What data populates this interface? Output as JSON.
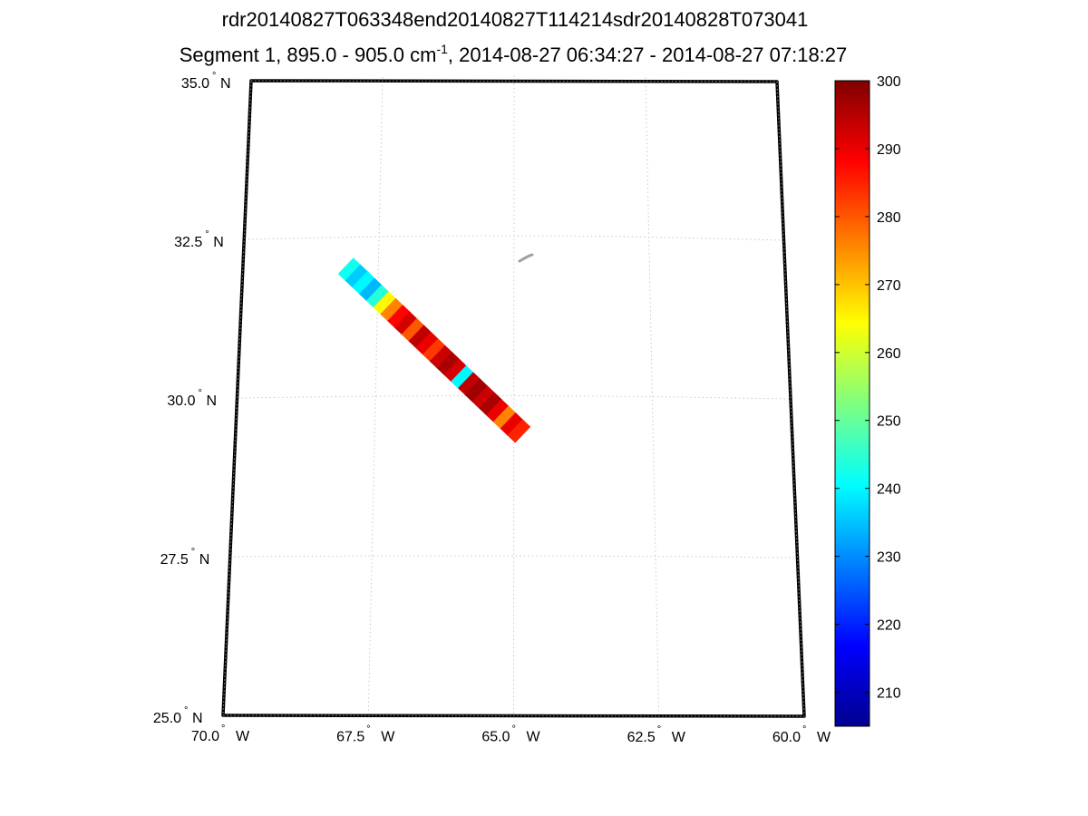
{
  "figure": {
    "title_line1": "rdr20140827T063348end20140827T114214sdr20140828T073041",
    "title_line2_prefix": "Segment 1, 895.0 - 905.0 cm",
    "title_line2_sup": "-1",
    "title_line2_suffix": ", 2014-08-27 06:34:27 - 2014-08-27 07:18:27"
  },
  "map": {
    "lon_range": [
      -70.0,
      -60.0
    ],
    "lat_range": [
      25.0,
      35.0
    ],
    "grid": true,
    "lat_ticks": [
      {
        "value": 35.0,
        "num": "35.0",
        "hem": "N"
      },
      {
        "value": 32.5,
        "num": "32.5",
        "hem": "N"
      },
      {
        "value": 30.0,
        "num": "30.0",
        "hem": "N"
      },
      {
        "value": 27.5,
        "num": "27.5",
        "hem": "N"
      },
      {
        "value": 25.0,
        "num": "25.0",
        "hem": "N"
      }
    ],
    "lon_ticks": [
      {
        "value": -70.0,
        "num": "70.0",
        "hem": "W"
      },
      {
        "value": -67.5,
        "num": "67.5",
        "hem": "W"
      },
      {
        "value": -65.0,
        "num": "65.0",
        "hem": "W"
      },
      {
        "value": -62.5,
        "num": "62.5",
        "hem": "W"
      },
      {
        "value": -60.0,
        "num": "60.0",
        "hem": "W"
      }
    ],
    "degree_symbol": "°"
  },
  "swath": {
    "start": {
      "lon": -68.1,
      "lat": 32.05
    },
    "end": {
      "lon": -64.85,
      "lat": 29.4
    },
    "segments": [
      {
        "t": 0.0,
        "value": 242
      },
      {
        "t": 0.04,
        "value": 236
      },
      {
        "t": 0.08,
        "value": 240
      },
      {
        "t": 0.12,
        "value": 234
      },
      {
        "t": 0.16,
        "value": 244
      },
      {
        "t": 0.2,
        "value": 265
      },
      {
        "t": 0.24,
        "value": 276
      },
      {
        "t": 0.28,
        "value": 288
      },
      {
        "t": 0.32,
        "value": 292
      },
      {
        "t": 0.36,
        "value": 280
      },
      {
        "t": 0.4,
        "value": 294
      },
      {
        "t": 0.44,
        "value": 290
      },
      {
        "t": 0.48,
        "value": 283
      },
      {
        "t": 0.52,
        "value": 293
      },
      {
        "t": 0.56,
        "value": 296
      },
      {
        "t": 0.6,
        "value": 292
      },
      {
        "t": 0.64,
        "value": 240
      },
      {
        "t": 0.68,
        "value": 294
      },
      {
        "t": 0.72,
        "value": 297
      },
      {
        "t": 0.76,
        "value": 293
      },
      {
        "t": 0.8,
        "value": 296
      },
      {
        "t": 0.84,
        "value": 290
      },
      {
        "t": 0.88,
        "value": 276
      },
      {
        "t": 0.92,
        "value": 290
      },
      {
        "t": 0.96,
        "value": 285
      }
    ]
  },
  "colorbar": {
    "colormap": "jet",
    "min": 205,
    "max": 300,
    "ticks": [
      {
        "value": 300,
        "label": "300"
      },
      {
        "value": 290,
        "label": "290"
      },
      {
        "value": 280,
        "label": "280"
      },
      {
        "value": 270,
        "label": "270"
      },
      {
        "value": 260,
        "label": "260"
      },
      {
        "value": 250,
        "label": "250"
      },
      {
        "value": 240,
        "label": "240"
      },
      {
        "value": 230,
        "label": "230"
      },
      {
        "value": 220,
        "label": "220"
      },
      {
        "value": 210,
        "label": "210"
      }
    ]
  }
}
